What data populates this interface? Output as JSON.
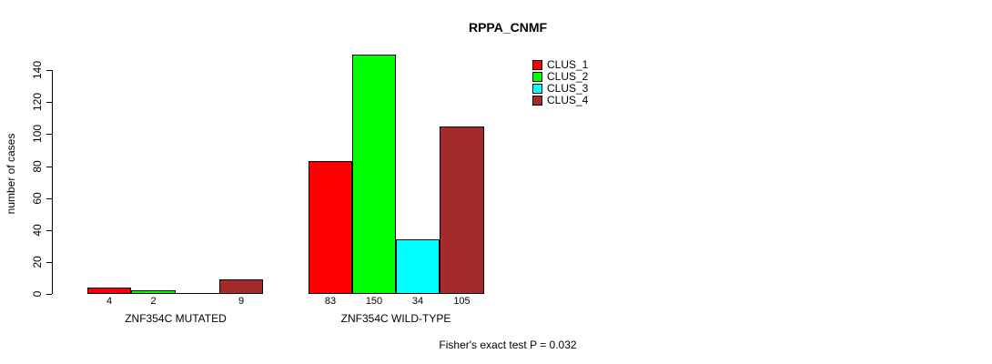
{
  "page": {
    "background": "#ffffff"
  },
  "chart_data": {
    "type": "bar",
    "title": "RPPA_CNMF",
    "ylabel": "number of cases",
    "xlabel": "",
    "ylim": [
      0,
      150
    ],
    "yticks": [
      0,
      20,
      40,
      60,
      80,
      100,
      120,
      140
    ],
    "grid": false,
    "legend_position": "top-right",
    "categories": [
      "ZNF354C MUTATED",
      "ZNF354C WILD-TYPE"
    ],
    "series": [
      {
        "name": "CLUS_1",
        "color": "#ff0000",
        "values": [
          4,
          83
        ]
      },
      {
        "name": "CLUS_2",
        "color": "#00ff00",
        "values": [
          2,
          150
        ]
      },
      {
        "name": "CLUS_3",
        "color": "#00ffff",
        "values": [
          0,
          34
        ]
      },
      {
        "name": "CLUS_4",
        "color": "#a52a2a",
        "values": [
          9,
          105
        ]
      }
    ],
    "bar_value_labels": true,
    "hide_zero_value_labels": true,
    "annotation": "Fisher's exact test P = 0.032"
  }
}
